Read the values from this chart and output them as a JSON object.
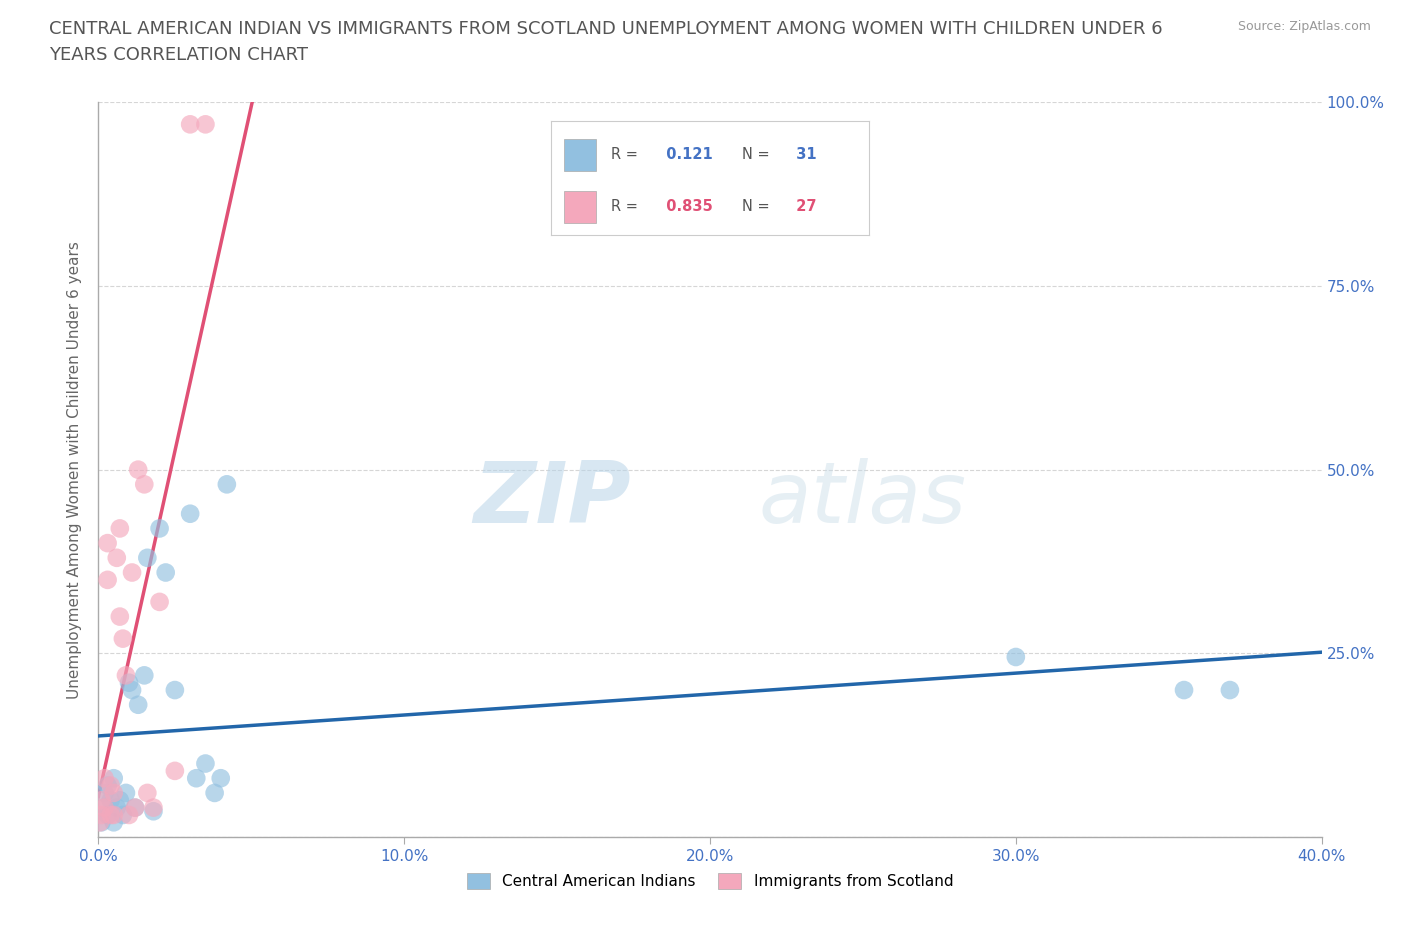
{
  "title_line1": "CENTRAL AMERICAN INDIAN VS IMMIGRANTS FROM SCOTLAND UNEMPLOYMENT AMONG WOMEN WITH CHILDREN UNDER 6",
  "title_line2": "YEARS CORRELATION CHART",
  "source": "Source: ZipAtlas.com",
  "ylabel": "Unemployment Among Women with Children Under 6 years",
  "xlim": [
    0.0,
    0.4
  ],
  "ylim": [
    0.0,
    1.0
  ],
  "xticks": [
    0.0,
    0.1,
    0.2,
    0.3,
    0.4
  ],
  "xtick_labels": [
    "0.0%",
    "10.0%",
    "20.0%",
    "30.0%",
    "40.0%"
  ],
  "yticks": [
    0.0,
    0.25,
    0.5,
    0.75,
    1.0
  ],
  "ytick_right_labels": [
    "",
    "25.0%",
    "50.0%",
    "75.0%",
    "100.0%"
  ],
  "blue_R": 0.121,
  "blue_N": 31,
  "pink_R": 0.835,
  "pink_N": 27,
  "blue_scatter_x": [
    0.001,
    0.002,
    0.002,
    0.003,
    0.003,
    0.004,
    0.005,
    0.005,
    0.006,
    0.007,
    0.008,
    0.009,
    0.01,
    0.011,
    0.012,
    0.013,
    0.015,
    0.016,
    0.018,
    0.02,
    0.022,
    0.025,
    0.03,
    0.032,
    0.035,
    0.038,
    0.04,
    0.042,
    0.3,
    0.355,
    0.37
  ],
  "blue_scatter_y": [
    0.02,
    0.04,
    0.06,
    0.03,
    0.07,
    0.05,
    0.02,
    0.08,
    0.04,
    0.05,
    0.03,
    0.06,
    0.21,
    0.2,
    0.04,
    0.18,
    0.22,
    0.38,
    0.035,
    0.42,
    0.36,
    0.2,
    0.44,
    0.08,
    0.1,
    0.06,
    0.08,
    0.48,
    0.245,
    0.2,
    0.2
  ],
  "pink_scatter_x": [
    0.0005,
    0.001,
    0.001,
    0.002,
    0.002,
    0.003,
    0.003,
    0.004,
    0.004,
    0.005,
    0.005,
    0.006,
    0.007,
    0.007,
    0.008,
    0.009,
    0.01,
    0.011,
    0.012,
    0.013,
    0.015,
    0.016,
    0.018,
    0.02,
    0.025,
    0.03,
    0.035
  ],
  "pink_scatter_y": [
    0.02,
    0.03,
    0.05,
    0.04,
    0.08,
    0.35,
    0.4,
    0.03,
    0.07,
    0.03,
    0.06,
    0.38,
    0.42,
    0.3,
    0.27,
    0.22,
    0.03,
    0.36,
    0.04,
    0.5,
    0.48,
    0.06,
    0.04,
    0.32,
    0.09,
    0.97,
    0.97
  ],
  "blue_color": "#92C0E0",
  "pink_color": "#F4A8BC",
  "blue_line_color": "#2266AA",
  "pink_line_color": "#E05075",
  "background_color": "#ffffff",
  "watermark_zip": "ZIP",
  "watermark_atlas": "atlas",
  "title_fontsize": 13,
  "axis_label_fontsize": 11,
  "tick_fontsize": 11,
  "tick_color": "#4472C4",
  "grid_color": "#CCCCCC",
  "source_fontsize": 9,
  "legend_R_color_blue": "#4472C4",
  "legend_R_color_pink": "#E05075"
}
